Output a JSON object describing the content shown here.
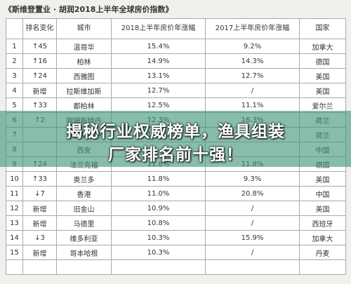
{
  "image": {
    "title": "《斯维登置业 · 胡润2018上半年全球房价指数》",
    "headers": [
      "",
      "排名变化",
      "城市",
      "2018上半年房价年涨幅",
      "2017上半年房价年涨幅",
      "国家"
    ],
    "rows": [
      [
        "1",
        "↑45",
        "温哥华",
        "15.4%",
        "9.2%",
        "加拿大"
      ],
      [
        "2",
        "↑16",
        "柏林",
        "14.9%",
        "14.3%",
        "德国"
      ],
      [
        "3",
        "↑24",
        "西雅图",
        "13.1%",
        "12.7%",
        "美国"
      ],
      [
        "4",
        "新增",
        "拉斯维加斯",
        "12.7%",
        "/",
        "美国"
      ],
      [
        "5",
        "↑33",
        "都柏林",
        "12.5%",
        "11.1%",
        "爱尔兰"
      ],
      [
        "6",
        "↑2",
        "阿姆斯特丹",
        "12.3%",
        "16.3%",
        "荷兰"
      ],
      [
        "7",
        "",
        "阿姆斯特丹",
        "12.3%",
        "",
        "荷兰"
      ],
      [
        "8",
        "",
        "西安",
        "",
        "",
        "中国"
      ],
      [
        "9",
        "↑24",
        "法兰克福",
        "11.8%",
        "11.8%",
        "德国"
      ],
      [
        "10",
        "↑33",
        "奥兰多",
        "11.8%",
        "9.3%",
        "美国"
      ],
      [
        "11",
        "↓7",
        "香港",
        "11.0%",
        "20.8%",
        "中国"
      ],
      [
        "12",
        "新增",
        "旧金山",
        "10.9%",
        "/",
        "美国"
      ],
      [
        "13",
        "新增",
        "马德里",
        "10.8%",
        "/",
        "西班牙"
      ],
      [
        "14",
        "↓3",
        "维多利亚",
        "10.3%",
        "15.9%",
        "加拿大"
      ],
      [
        "15",
        "新增",
        "哥本哈根",
        "10.3%",
        "/",
        "丹麦"
      ],
      [
        "",
        "",
        "",
        "",
        "",
        ""
      ]
    ]
  },
  "banner": {
    "line1": "揭秘行业权威榜单，渔具组装",
    "line2": "厂家排名前十强！",
    "band_color": "#409478"
  }
}
